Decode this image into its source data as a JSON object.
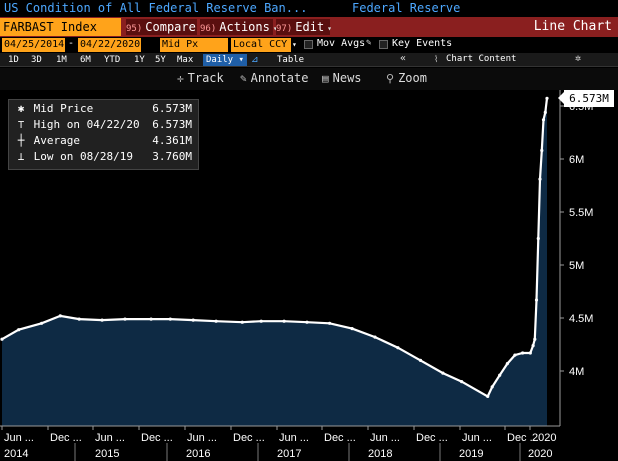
{
  "window": {
    "title": "US Condition of All Federal Reserve Ban...",
    "subtitle": "Federal Reserve"
  },
  "command_bar": {
    "ticker": "FARBAST Index",
    "compare": {
      "num": "95)",
      "label": "Compare"
    },
    "actions": {
      "num": "96)",
      "label": "Actions"
    },
    "edit": {
      "num": "97)",
      "label": "Edit"
    },
    "view_label": "Line Chart"
  },
  "settings": {
    "start_date": "04/25/2014",
    "end_date": "04/22/2020",
    "field": "Mid Px",
    "currency": "Local CCY",
    "mov_avgs": "Mov Avgs",
    "key_events": "Key Events"
  },
  "range": {
    "buttons": [
      "1D",
      "3D",
      "1M",
      "6M",
      "YTD",
      "1Y",
      "5Y",
      "Max"
    ],
    "frequency": "Daily",
    "table": "Table",
    "chart_content": "Chart Content"
  },
  "tools": {
    "track": "Track",
    "annotate": "Annotate",
    "news": "News",
    "zoom": "Zoom"
  },
  "legend": {
    "rows": [
      {
        "label": "Mid Price",
        "value": "6.573M"
      },
      {
        "label": "High on 04/22/20",
        "value": "6.573M"
      },
      {
        "label": "Average",
        "value": "4.361M"
      },
      {
        "label": "Low on 08/28/19",
        "value": "3.760M"
      }
    ]
  },
  "last_price_tag": "6.573M",
  "colors": {
    "background": "#000000",
    "area_fill": "#0e2a44",
    "line": "#ffffff",
    "ticker_bg": "#ffa31a",
    "command_bar_bg": "#8a1f1f",
    "title_text": "#4da8ff"
  },
  "chart_data": {
    "type": "area",
    "title": "US Condition of All Federal Reserve Ban...",
    "xlabel": "",
    "ylabel": "",
    "x_range": [
      "2014-04-25",
      "2020-04-22"
    ],
    "ylim": [
      3.5,
      6.7
    ],
    "y_ticks": [
      4,
      4.5,
      5,
      5.5,
      6,
      6.5
    ],
    "y_tick_labels": [
      "4M",
      "4.5M",
      "5M",
      "5.5M",
      "6M",
      "6.5M"
    ],
    "x_tick_labels": [
      "Jun",
      "Dec",
      "Jun",
      "Dec",
      "Jun",
      "Dec",
      "Jun",
      "Dec",
      "Jun",
      "Dec",
      "Jun",
      "Dec",
      "2020"
    ],
    "year_labels": [
      "2014",
      "2015",
      "2016",
      "2017",
      "2018",
      "2019",
      "2020"
    ],
    "grid": false,
    "series": [
      {
        "name": "Mid Price",
        "points": [
          [
            "2014-04-25",
            4.3
          ],
          [
            "2014-07-01",
            4.39
          ],
          [
            "2014-10-01",
            4.45
          ],
          [
            "2014-12-15",
            4.52
          ],
          [
            "2015-03-01",
            4.49
          ],
          [
            "2015-06-01",
            4.48
          ],
          [
            "2015-09-01",
            4.49
          ],
          [
            "2015-12-15",
            4.49
          ],
          [
            "2016-03-01",
            4.49
          ],
          [
            "2016-06-01",
            4.48
          ],
          [
            "2016-09-01",
            4.47
          ],
          [
            "2016-12-15",
            4.46
          ],
          [
            "2017-03-01",
            4.47
          ],
          [
            "2017-06-01",
            4.47
          ],
          [
            "2017-09-01",
            4.46
          ],
          [
            "2017-12-01",
            4.45
          ],
          [
            "2018-03-01",
            4.4
          ],
          [
            "2018-06-01",
            4.32
          ],
          [
            "2018-09-01",
            4.22
          ],
          [
            "2018-12-01",
            4.1
          ],
          [
            "2019-03-01",
            3.98
          ],
          [
            "2019-05-15",
            3.9
          ],
          [
            "2019-08-28",
            3.76
          ],
          [
            "2019-09-15",
            3.85
          ],
          [
            "2019-10-15",
            3.96
          ],
          [
            "2019-11-15",
            4.07
          ],
          [
            "2019-12-15",
            4.15
          ],
          [
            "2020-01-15",
            4.17
          ],
          [
            "2020-02-15",
            4.17
          ],
          [
            "2020-02-26",
            4.24
          ],
          [
            "2020-03-04",
            4.3
          ],
          [
            "2020-03-11",
            4.67
          ],
          [
            "2020-03-18",
            5.25
          ],
          [
            "2020-03-25",
            5.81
          ],
          [
            "2020-04-01",
            6.08
          ],
          [
            "2020-04-08",
            6.37
          ],
          [
            "2020-04-15",
            6.44
          ],
          [
            "2020-04-22",
            6.573
          ]
        ]
      }
    ]
  }
}
